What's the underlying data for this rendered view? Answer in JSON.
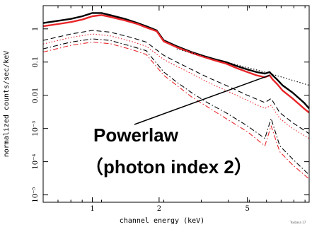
{
  "chart_data": {
    "type": "line",
    "title": "",
    "xlabel": "channel energy (keV)",
    "ylabel": "normalized counts/sec/keV",
    "xscale": "log",
    "yscale": "log",
    "xlim": [
      0.6,
      9.5
    ],
    "ylim": [
      6e-06,
      5
    ],
    "grid": false,
    "x_ticks": [
      {
        "value": 1,
        "label": "1"
      },
      {
        "value": 2,
        "label": "2"
      },
      {
        "value": 5,
        "label": "5"
      }
    ],
    "y_ticks": [
      {
        "value": 1,
        "label": "1"
      },
      {
        "value": 0.1,
        "label": "0.1"
      },
      {
        "value": 0.01,
        "label": "0.01"
      },
      {
        "value": 0.001,
        "label": "10⁻³"
      },
      {
        "value": 0.0001,
        "label": "10⁻⁴"
      },
      {
        "value": 1e-05,
        "label": "10⁻⁵"
      }
    ],
    "series": [
      {
        "color": "#000000",
        "style": "data",
        "x": [
          0.6,
          0.7,
          0.8,
          0.9,
          1.0,
          1.1,
          1.2,
          1.4,
          1.6,
          1.75,
          1.95,
          2.1,
          2.4,
          2.8,
          3.2,
          3.6,
          4.0,
          4.5,
          5.0,
          5.5,
          6.0,
          6.3,
          6.5,
          6.8,
          7.2,
          8.0,
          9.0,
          9.5
        ],
        "y": [
          1.5,
          1.75,
          2.0,
          2.4,
          3.0,
          3.0,
          2.6,
          2.0,
          1.5,
          1.2,
          0.9,
          0.45,
          0.3,
          0.2,
          0.15,
          0.12,
          0.1,
          0.075,
          0.06,
          0.05,
          0.045,
          0.05,
          0.04,
          0.03,
          0.02,
          0.012,
          0.006,
          0.004
        ]
      },
      {
        "color": "#e8262a",
        "style": "data",
        "x": [
          0.6,
          0.7,
          0.8,
          0.9,
          1.0,
          1.1,
          1.2,
          1.4,
          1.6,
          1.75,
          1.95,
          2.1,
          2.4,
          2.8,
          3.2,
          3.6,
          4.0,
          4.5,
          5.0,
          5.5,
          6.0,
          6.3,
          6.5,
          6.8,
          7.2,
          8.0,
          9.0,
          9.5
        ],
        "y": [
          1.2,
          1.4,
          1.6,
          1.9,
          2.4,
          2.6,
          2.3,
          1.8,
          1.4,
          1.1,
          0.85,
          0.42,
          0.28,
          0.19,
          0.14,
          0.11,
          0.09,
          0.065,
          0.05,
          0.04,
          0.035,
          0.04,
          0.03,
          0.022,
          0.014,
          0.008,
          0.004,
          0.003
        ]
      },
      {
        "color": "#000000",
        "style": "dashed",
        "x": [
          0.6,
          0.8,
          1.0,
          1.2,
          1.5,
          1.75,
          2.1,
          2.4,
          2.8,
          3.3,
          4.0,
          5.0,
          6.0,
          6.4,
          7.0,
          8.0,
          9.5
        ],
        "y": [
          0.45,
          0.7,
          0.9,
          0.8,
          0.55,
          0.4,
          0.16,
          0.1,
          0.06,
          0.035,
          0.02,
          0.01,
          0.006,
          0.008,
          0.003,
          0.0015,
          0.0007
        ]
      },
      {
        "color": "#e8262a",
        "style": "dotted",
        "x": [
          0.6,
          0.8,
          1.0,
          1.2,
          1.5,
          1.75,
          2.1,
          2.4,
          2.8,
          3.3,
          4.0,
          5.0,
          6.0,
          6.4,
          7.0,
          8.0,
          9.5
        ],
        "y": [
          0.35,
          0.55,
          0.7,
          0.62,
          0.42,
          0.3,
          0.12,
          0.075,
          0.045,
          0.025,
          0.014,
          0.007,
          0.004,
          0.005,
          0.002,
          0.001,
          0.0005
        ]
      },
      {
        "color": "#000000",
        "style": "dashdot",
        "x": [
          0.6,
          0.8,
          1.0,
          1.2,
          1.5,
          1.75,
          2.1,
          2.4,
          2.8,
          3.3,
          4.0,
          5.0,
          6.0,
          6.4,
          7.0,
          8.0,
          9.5
        ],
        "y": [
          0.25,
          0.4,
          0.5,
          0.45,
          0.3,
          0.22,
          0.05,
          0.025,
          0.012,
          0.006,
          0.003,
          0.0012,
          0.0005,
          0.002,
          0.0003,
          0.00012,
          4e-05
        ]
      },
      {
        "color": "#e8262a",
        "style": "dashdot",
        "x": [
          0.6,
          0.8,
          1.0,
          1.2,
          1.5,
          1.75,
          2.1,
          2.4,
          2.8,
          3.3,
          4.0,
          5.0,
          6.0,
          6.4,
          7.0,
          8.0,
          9.5
        ],
        "y": [
          0.2,
          0.32,
          0.4,
          0.36,
          0.24,
          0.17,
          0.04,
          0.02,
          0.009,
          0.0045,
          0.002,
          0.0008,
          0.0003,
          0.0012,
          0.0002,
          8e-05,
          3e-05
        ]
      },
      {
        "color": "#000000",
        "style": "dotted",
        "x": [
          2.4,
          4.0,
          6.0,
          9.5
        ],
        "y": [
          0.25,
          0.1,
          0.05,
          0.02
        ]
      }
    ],
    "annotations": [
      {
        "line1": "Powerlaw",
        "line2": "（photon index 2）",
        "target": {
          "x": 6.3,
          "y": 0.04
        }
      }
    ]
  },
  "credit": "Tsubasa 17"
}
